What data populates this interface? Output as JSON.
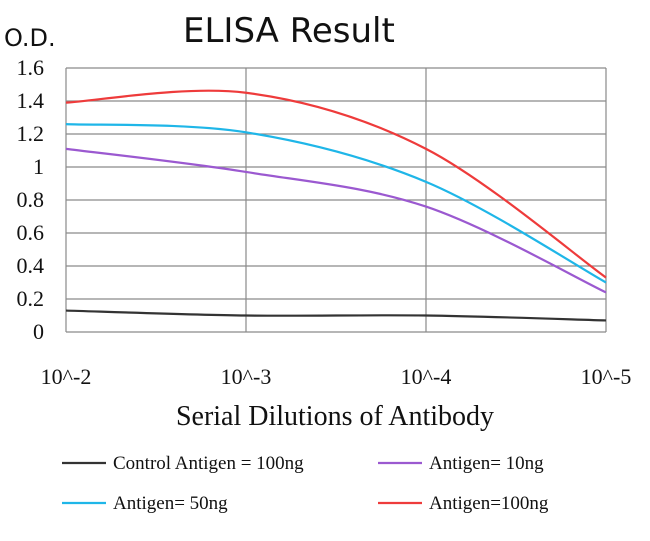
{
  "chart_data": {
    "type": "line",
    "title": "ELISA Result",
    "ylabel": "O.D.",
    "xlabel": "Serial Dilutions of Antibody",
    "categories": [
      "10^-2",
      "10^-3",
      "10^-4",
      "10^-5"
    ],
    "ylim": [
      0,
      1.6
    ],
    "yticks": [
      "0",
      "0.2",
      "0.4",
      "0.6",
      "0.8",
      "1",
      "1.2",
      "1.4",
      "1.6"
    ],
    "grid": true,
    "legend_position": "bottom",
    "series": [
      {
        "name": "Control Antigen = 100ng",
        "color": "#333333",
        "values": [
          0.13,
          0.1,
          0.1,
          0.07
        ]
      },
      {
        "name": "Antigen= 10ng",
        "color": "#9b59d0",
        "values": [
          1.11,
          0.97,
          0.76,
          0.24
        ]
      },
      {
        "name": "Antigen= 50ng",
        "color": "#1fb6e8",
        "values": [
          1.26,
          1.21,
          0.91,
          0.3
        ]
      },
      {
        "name": "Antigen=100ng",
        "color": "#ee3b3b",
        "values": [
          1.39,
          1.45,
          1.11,
          0.33
        ]
      }
    ]
  }
}
